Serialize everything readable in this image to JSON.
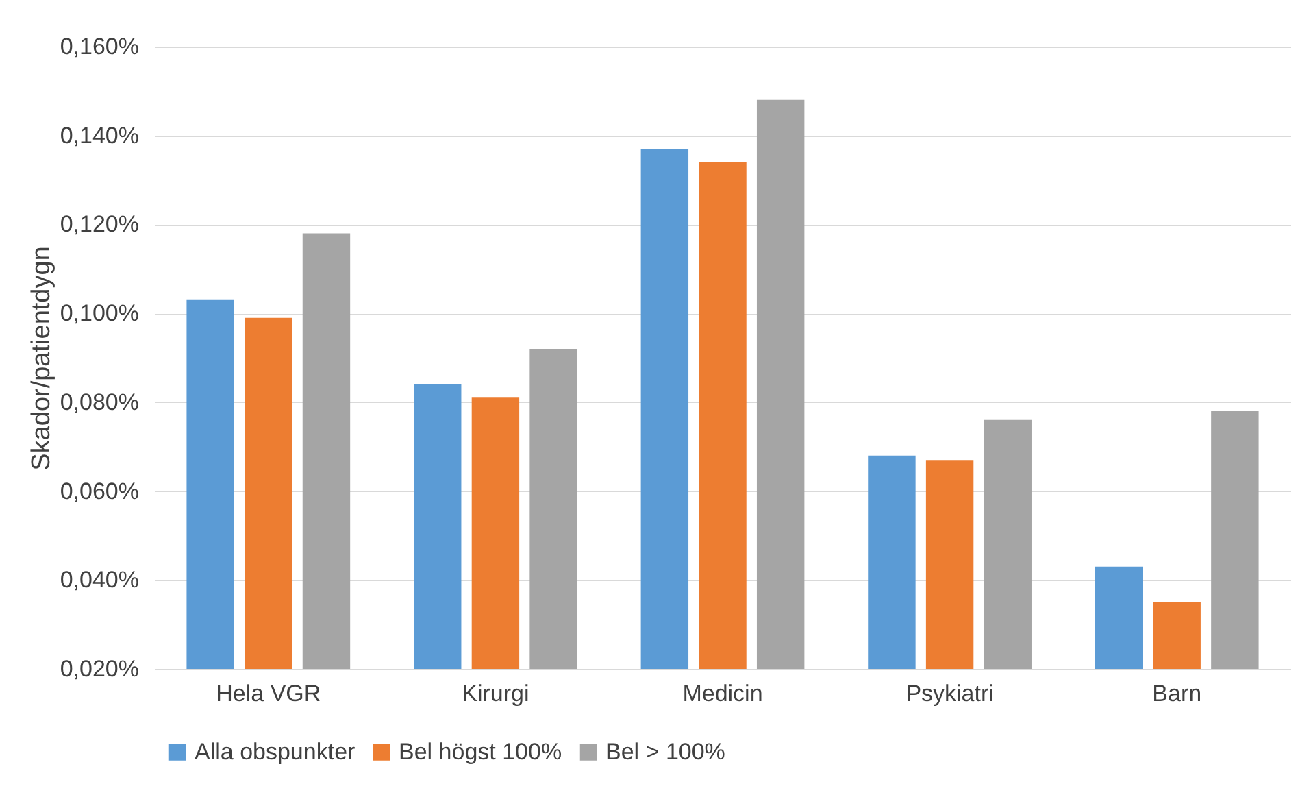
{
  "chart_data": {
    "type": "bar",
    "ylabel": "Skador/patientdygn",
    "categories": [
      "Hela VGR",
      "Kirurgi",
      "Medicin",
      "Psykiatri",
      "Barn"
    ],
    "series": [
      {
        "name": "Alla obspunkter",
        "color": "#5b9bd5",
        "values": [
          0.103,
          0.084,
          0.137,
          0.068,
          0.043
        ]
      },
      {
        "name": "Bel högst 100%",
        "color": "#ed7d31",
        "values": [
          0.099,
          0.081,
          0.134,
          0.067,
          0.035
        ]
      },
      {
        "name": "Bel > 100%",
        "color": "#a5a5a5",
        "values": [
          0.118,
          0.092,
          0.148,
          0.076,
          0.078
        ]
      }
    ],
    "ylim": [
      0.02,
      0.16
    ],
    "yticks": [
      {
        "value": 0.02,
        "label": "0,020%"
      },
      {
        "value": 0.04,
        "label": "0,040%"
      },
      {
        "value": 0.06,
        "label": "0,060%"
      },
      {
        "value": 0.08,
        "label": "0,080%"
      },
      {
        "value": 0.1,
        "label": "0,100%"
      },
      {
        "value": 0.12,
        "label": "0,120%"
      },
      {
        "value": 0.14,
        "label": "0,140%"
      },
      {
        "value": 0.16,
        "label": "0,160%"
      }
    ],
    "grid": "y",
    "legend": "bottom"
  }
}
